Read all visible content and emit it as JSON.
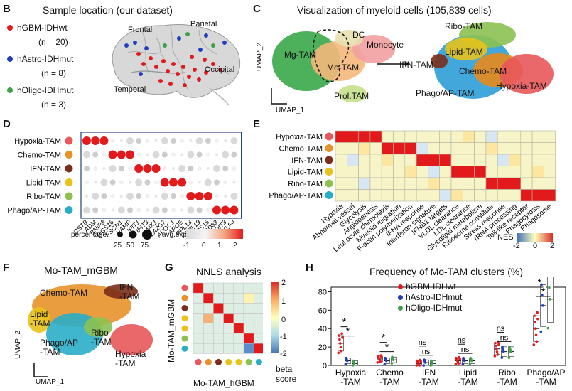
{
  "panels": {
    "B": {
      "label": "B",
      "title": "Sample location (our dataset)",
      "legend": [
        {
          "name": "hGBM-IDHwt",
          "n": "(n = 20)",
          "color": "#e31a1c"
        },
        {
          "name": "hAstro-IDHmut",
          "n": "(n = 8)",
          "color": "#1f3fbf"
        },
        {
          "name": "hOligo-IDHmut",
          "n": "(n = 3)",
          "color": "#3ea04a"
        }
      ],
      "lobes": [
        "Frontal",
        "Parietal",
        "Occipital",
        "Temporal"
      ]
    },
    "C": {
      "label": "C",
      "title": "Visualization of myeloid cells (105,839 cells)",
      "left_clusters": [
        "DC",
        "Monocyte",
        "Mg-TAM",
        "Mo-TAM",
        "Prol.TAM"
      ],
      "right_clusters": [
        "Ribo-TAM",
        "Lipid-TAM",
        "IFN-TAM",
        "Chemo-TAM",
        "Phago/AP-TAM",
        "Hypoxia-TAM"
      ],
      "xaxis": "UMAP_1",
      "yaxis": "UMAP_2"
    },
    "D": {
      "label": "D",
      "rows": [
        "Hypoxia-TAM",
        "Chemo-TAM",
        "IFN-TAM",
        "Lipid-TAM",
        "Ribo-TAM",
        "Phago/AP-TAM"
      ],
      "row_colors": [
        "#e8575a",
        "#e8922a",
        "#7a2e1a",
        "#e8c21a",
        "#8cc152",
        "#2aaec8"
      ],
      "genes": [
        "CSTB",
        "ADM",
        "BNIP3",
        "RGS16",
        "FSCN1",
        "HAMP",
        "IFIT1",
        "IFIT3",
        "MX1",
        "PLA2G7",
        "APOC1",
        "APOE",
        "RPL13",
        "RPL19",
        "RPS15",
        "CD83",
        "DDIT3",
        "KLF4"
      ],
      "size_legend_title": "percentage",
      "size_legend": [
        "25",
        "50",
        "75"
      ],
      "color_legend_title": "avg.exp",
      "color_legend": [
        "-1",
        "0",
        "1",
        "2"
      ]
    },
    "E": {
      "label": "E",
      "rows": [
        "Hypoxia-TAM",
        "Chemo-TAM",
        "IFN-TAM",
        "Lipid-TAM",
        "Ribo-TAM",
        "Phago/AP-TAM"
      ],
      "terms": [
        "Hypoxia",
        "Abnormal vessel",
        "Glycolysis",
        "Angiogenesis",
        "Leukocyte chemotaxis",
        "Myeloid migration",
        "F-actin polymerization",
        "IFNA response",
        "Interferon signature",
        "IFNB1 targets",
        "VLDL clearance",
        "LDL clearance",
        "Glycolipid metabolism",
        "Ribosome constitute",
        "Stress response",
        "rRNA processing",
        "Toll-like receptor",
        "Phagocytosis",
        "Phagosome"
      ],
      "legend_title": "NES",
      "legend": [
        "-2",
        "0",
        "2"
      ]
    },
    "F": {
      "label": "F",
      "title": "Mo-TAM_mGBM",
      "clusters": [
        "IFN\n-TAM",
        "Chemo-TAM",
        "Lipid\n-TAM",
        "Ribo\n-TAM",
        "Phago/AP\n-TAM",
        "Hypoxia\n-TAM"
      ],
      "xaxis": "UMAP_1",
      "yaxis": "UMAP_2"
    },
    "G": {
      "label": "G",
      "title": "NNLS analysis",
      "yaxis": "Mo-TAM_mGBM",
      "xaxis": "Mo-TAM_hGBM",
      "legend_title": "beta\nscore",
      "legend": [
        "2",
        "1",
        "0",
        "-1",
        "-2"
      ]
    },
    "H": {
      "label": "H",
      "title": "Frequency of Mo-TAM clusters (%)",
      "legend": [
        {
          "name": "hGBM-IDHwt",
          "color": "#e31a1c"
        },
        {
          "name": "hAstro-IDHmut",
          "color": "#1f3fbf"
        },
        {
          "name": "hOligo-IDHmut",
          "color": "#3ea04a"
        }
      ],
      "sig": [
        [
          "*",
          "*"
        ],
        [
          "*",
          "*"
        ],
        [
          "ns",
          "ns"
        ],
        [
          "ns",
          "ns"
        ],
        [
          "ns",
          "ns"
        ],
        [
          "*",
          "*"
        ]
      ],
      "chart_data": {
        "type": "box",
        "title": "Frequency of Mo-TAM clusters (%)",
        "categories": [
          "Hypoxia\n-TAM",
          "Chemo\n-TAM",
          "IFN\n-TAM",
          "Lipid\n-TAM",
          "Ribo\n-TAM",
          "Phago/AP\n-TAM"
        ],
        "ylim": [
          0,
          85
        ],
        "yticks": [
          "0",
          "20",
          "40",
          "60",
          "80"
        ],
        "series": [
          {
            "name": "hGBM-IDHwt",
            "medians": [
              24,
              7,
              2,
              5,
              18,
              40
            ]
          },
          {
            "name": "hAstro-IDHmut",
            "medians": [
              5,
              5,
              3,
              5,
              15,
              65
            ]
          },
          {
            "name": "hOligo-IDHmut",
            "medians": [
              2,
              6,
              2,
              5,
              15,
              72
            ]
          }
        ]
      }
    }
  }
}
